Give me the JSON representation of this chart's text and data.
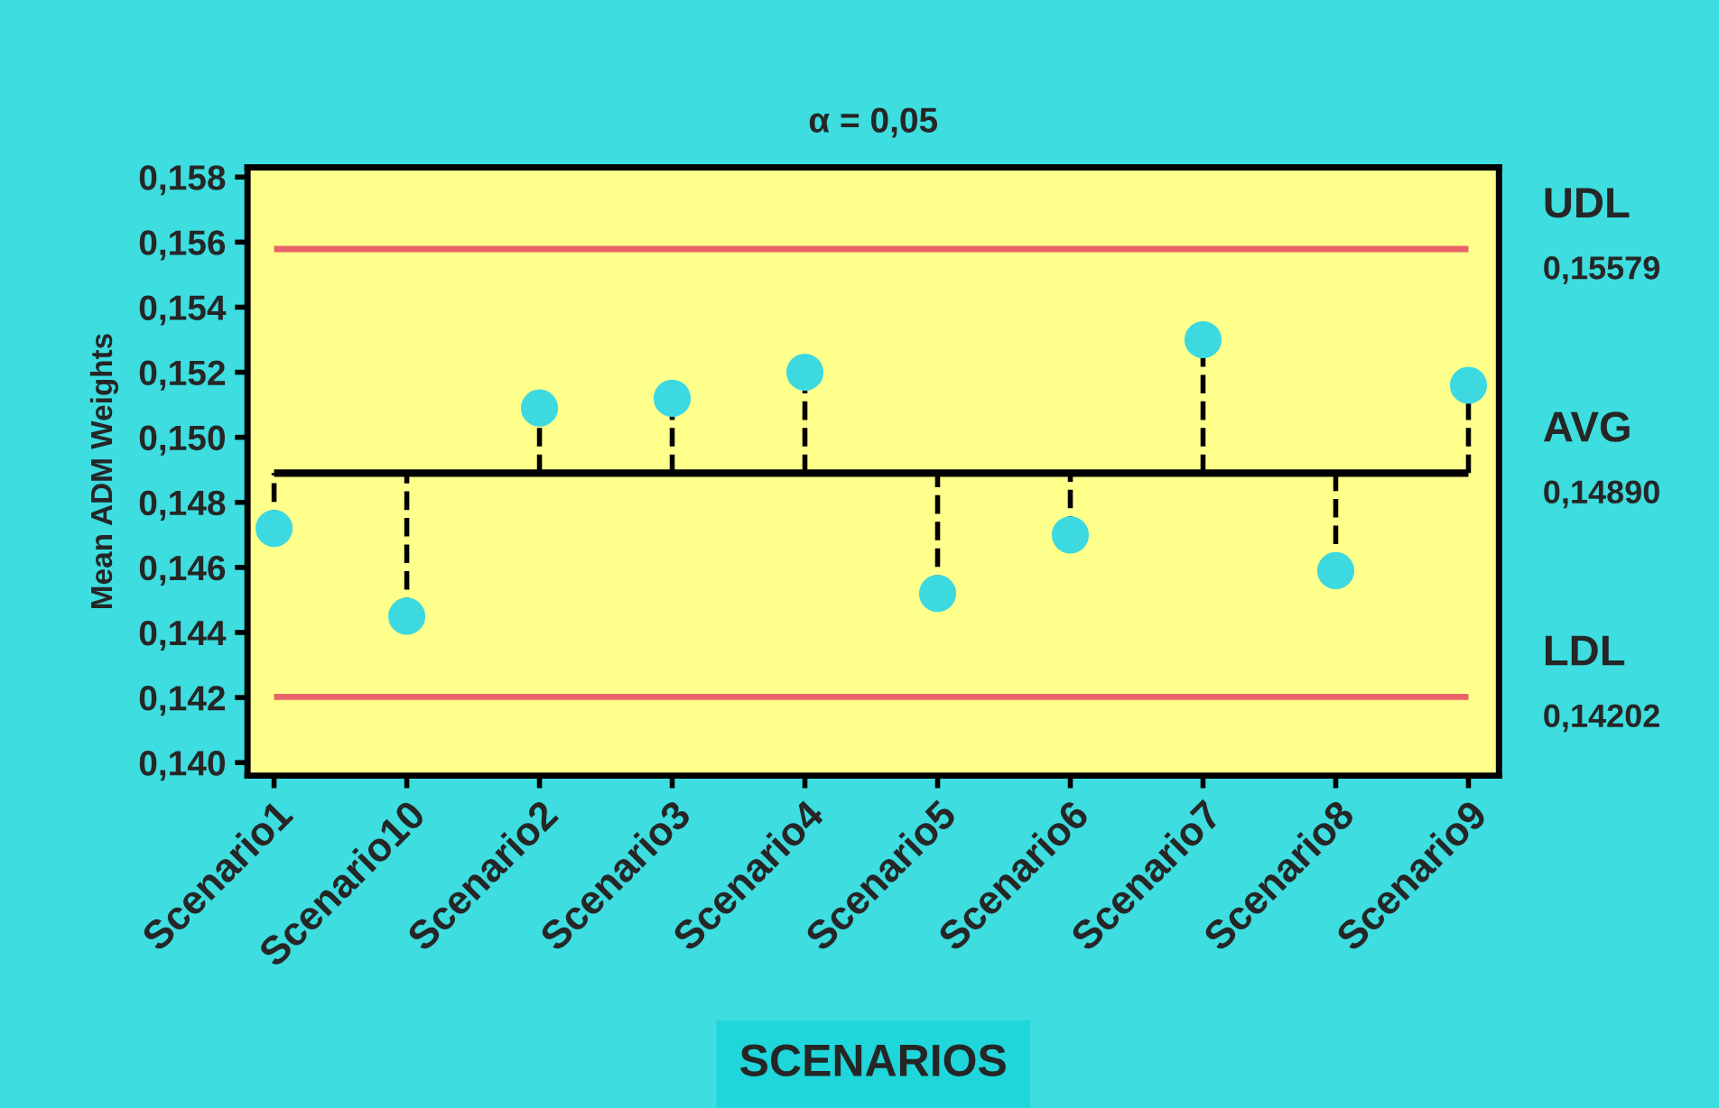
{
  "chart_data": {
    "type": "scatter",
    "title": "α = 0,05",
    "xlabel": "SCENARIOS",
    "ylabel": "Mean ADM Weights",
    "categories": [
      "Scenario1",
      "Scenario10",
      "Scenario2",
      "Scenario3",
      "Scenario4",
      "Scenario5",
      "Scenario6",
      "Scenario7",
      "Scenario8",
      "Scenario9"
    ],
    "series": [
      {
        "color": "#3dd9e0",
        "values": [
          0.1472,
          0.1445,
          0.1509,
          0.1512,
          0.152,
          0.1452,
          0.147,
          0.153,
          0.1459,
          0.1516
        ],
        "errors": [
          [
            0.1472,
            0.1489
          ],
          [
            0.1445,
            0.1489
          ],
          [
            0.1489,
            0.1509
          ],
          [
            0.1489,
            0.1512
          ],
          [
            0.1489,
            0.152
          ],
          [
            0.1452,
            0.1489
          ],
          [
            0.147,
            0.1489
          ],
          [
            0.1489,
            0.153
          ],
          [
            0.1459,
            0.1489
          ],
          [
            0.1489,
            0.1516
          ]
        ]
      }
    ],
    "ylim": [
      0.1396,
      0.1583
    ],
    "yticks": [
      {
        "value": 0.14,
        "label": "0,140"
      },
      {
        "value": 0.142,
        "label": "0,142"
      },
      {
        "value": 0.144,
        "label": "0,144"
      },
      {
        "value": 0.146,
        "label": "0,146"
      },
      {
        "value": 0.148,
        "label": "0,148"
      },
      {
        "value": 0.15,
        "label": "0,150"
      },
      {
        "value": 0.152,
        "label": "0,152"
      },
      {
        "value": 0.154,
        "label": "0,154"
      },
      {
        "value": 0.156,
        "label": "0,156"
      },
      {
        "value": 0.158,
        "label": "0,158"
      }
    ],
    "ref_lines": [
      {
        "axis": "y",
        "value": 0.15579,
        "label": "UDL",
        "color": "#e8636a"
      },
      {
        "axis": "y",
        "value": 0.1489,
        "label": "AVG",
        "color": "#000000"
      },
      {
        "axis": "y",
        "value": 0.14202,
        "label": "LDL",
        "color": "#e8636a"
      }
    ],
    "annotations": [
      "0,15579",
      "0,14890",
      "0,14202"
    ],
    "marker": "circle",
    "line_style": "dashed",
    "grid": false,
    "legend": false
  }
}
